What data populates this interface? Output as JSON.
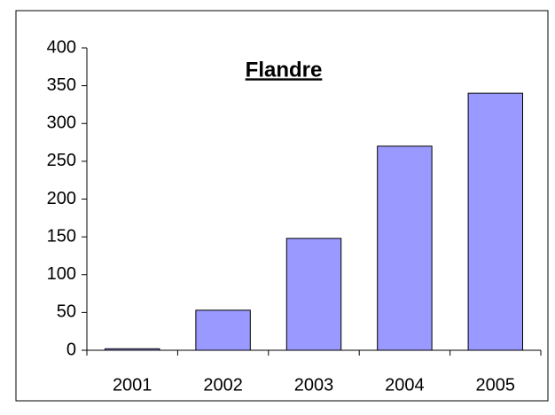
{
  "chart_data": {
    "type": "bar",
    "title": "Flandre",
    "categories": [
      "2001",
      "2002",
      "2003",
      "2004",
      "2005"
    ],
    "values": [
      2,
      53,
      148,
      270,
      340
    ],
    "color": "#9999ff",
    "ylim": [
      0,
      400
    ],
    "yticks": [
      0,
      50,
      100,
      150,
      200,
      250,
      300,
      350,
      400
    ],
    "grid": false
  }
}
